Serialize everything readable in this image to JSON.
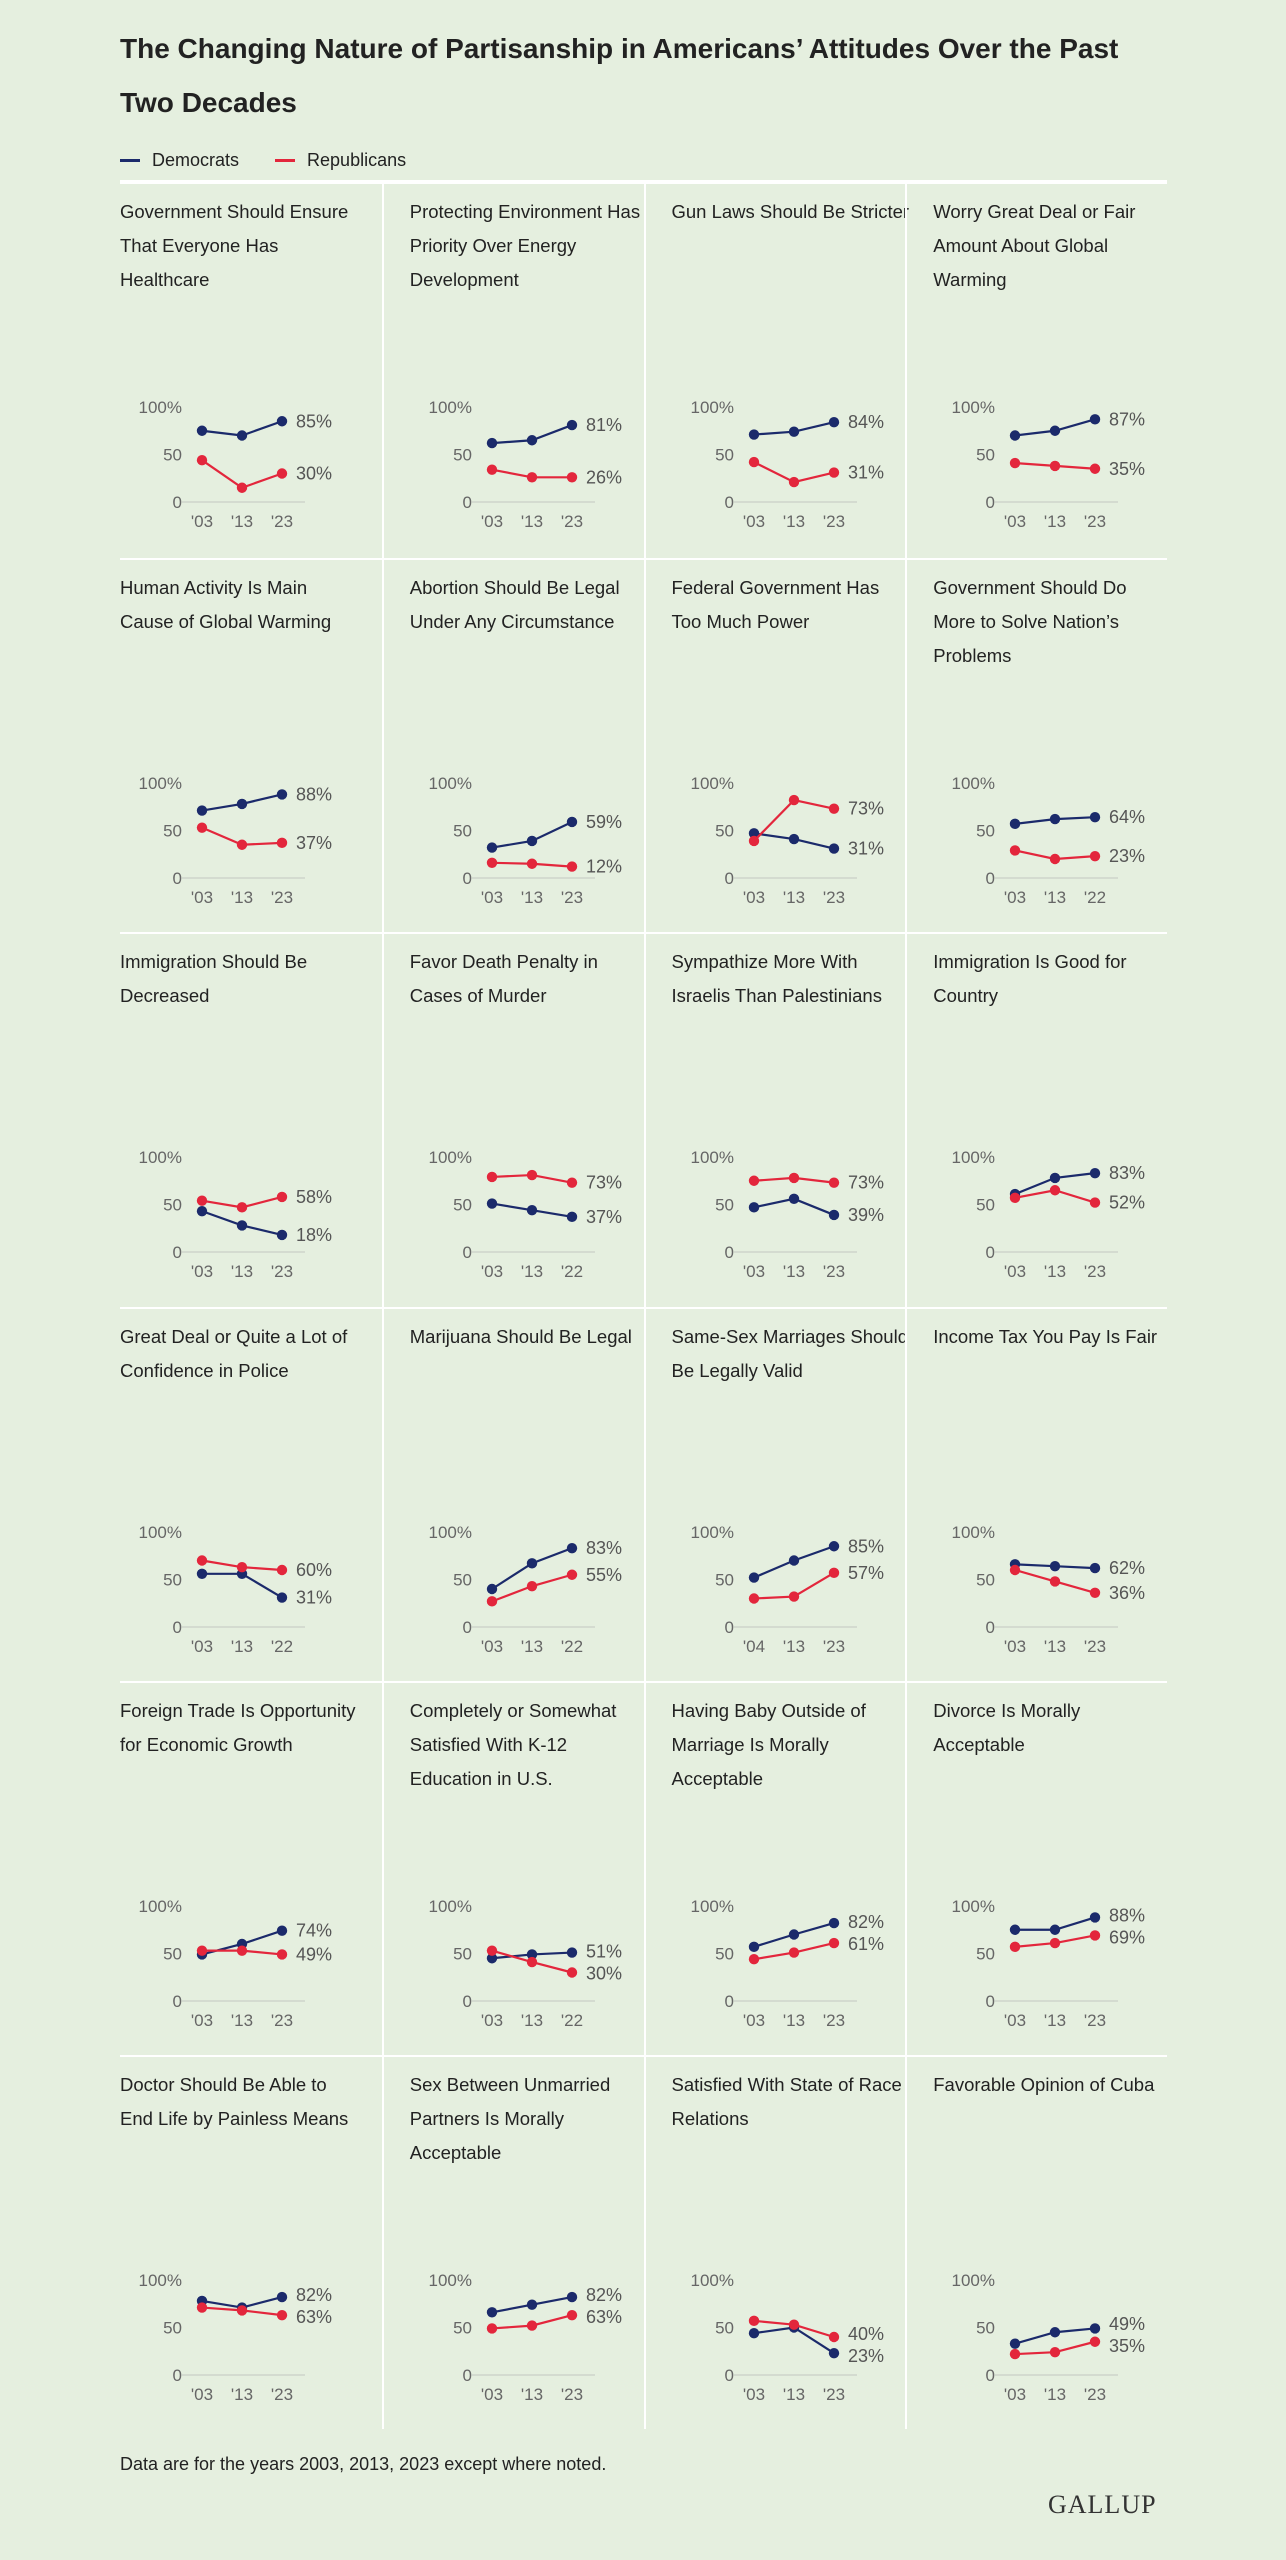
{
  "title": "The Changing Nature of Partisanship in Americans’ Attitudes Over the Past Two Decades",
  "legend": [
    {
      "name": "Democrats",
      "color": "#1b2a6b"
    },
    {
      "name": "Republicans",
      "color": "#e3263c"
    }
  ],
  "colors": {
    "democrats": "#1b2a6b",
    "republicans": "#e3263c",
    "background": "#e5efdf"
  },
  "y_ticks": [
    "100%",
    "50",
    "0"
  ],
  "footnote": "Data are for the years 2003, 2013, 2023 except where noted.",
  "brand": "GALLUP",
  "chart_data": [
    {
      "type": "line",
      "title": "Government  Should Ensure That Everyone Has Healthcare",
      "x": [
        "'03",
        "'13",
        "'23"
      ],
      "ylim": [
        0,
        100
      ],
      "series": [
        {
          "name": "Democrats",
          "values": [
            75,
            70,
            85
          ],
          "label": "85%"
        },
        {
          "name": "Republicans",
          "values": [
            44,
            15,
            30
          ],
          "label": "30%"
        }
      ]
    },
    {
      "type": "line",
      "title": "Protecting Environment Has Priority Over Energy Development",
      "x": [
        "'03",
        "'13",
        "'23"
      ],
      "ylim": [
        0,
        100
      ],
      "series": [
        {
          "name": "Democrats",
          "values": [
            62,
            65,
            81
          ],
          "label": "81%"
        },
        {
          "name": "Republicans",
          "values": [
            34,
            26,
            26
          ],
          "label": "26%"
        }
      ]
    },
    {
      "type": "line",
      "title": "Gun Laws Should Be Stricter",
      "x": [
        "'03",
        "'13",
        "'23"
      ],
      "ylim": [
        0,
        100
      ],
      "series": [
        {
          "name": "Democrats",
          "values": [
            71,
            74,
            84
          ],
          "label": "84%"
        },
        {
          "name": "Republicans",
          "values": [
            42,
            21,
            31
          ],
          "label": "31%"
        }
      ]
    },
    {
      "type": "line",
      "title": "Worry Great Deal or Fair Amount About Global Warming",
      "x": [
        "'03",
        "'13",
        "'23"
      ],
      "ylim": [
        0,
        100
      ],
      "series": [
        {
          "name": "Democrats",
          "values": [
            70,
            75,
            87
          ],
          "label": "87%"
        },
        {
          "name": "Republicans",
          "values": [
            41,
            38,
            35
          ],
          "label": "35%"
        }
      ]
    },
    {
      "type": "line",
      "title": "Human Activity Is Main Cause of Global Warming",
      "x": [
        "'03",
        "'13",
        "'23"
      ],
      "ylim": [
        0,
        100
      ],
      "series": [
        {
          "name": "Democrats",
          "values": [
            71,
            78,
            88
          ],
          "label": "88%"
        },
        {
          "name": "Republicans",
          "values": [
            53,
            35,
            37
          ],
          "label": "37%"
        }
      ]
    },
    {
      "type": "line",
      "title": "Abortion Should Be Legal Under Any Circumstance",
      "x": [
        "'03",
        "'13",
        "'23"
      ],
      "ylim": [
        0,
        100
      ],
      "series": [
        {
          "name": "Democrats",
          "values": [
            32,
            39,
            59
          ],
          "label": "59%"
        },
        {
          "name": "Republicans",
          "values": [
            16,
            15,
            12
          ],
          "label": "12%"
        }
      ]
    },
    {
      "type": "line",
      "title": "Federal Government Has Too Much Power",
      "x": [
        "'03",
        "'13",
        "'23"
      ],
      "ylim": [
        0,
        100
      ],
      "series": [
        {
          "name": "Democrats",
          "values": [
            47,
            41,
            31
          ],
          "label": "31%"
        },
        {
          "name": "Republicans",
          "values": [
            39,
            82,
            73
          ],
          "label": "73%"
        }
      ]
    },
    {
      "type": "line",
      "title": "Government Should Do More to Solve Nation’s Problems",
      "x": [
        "'03",
        "'13",
        "'22"
      ],
      "ylim": [
        0,
        100
      ],
      "series": [
        {
          "name": "Democrats",
          "values": [
            57,
            62,
            64
          ],
          "label": "64%"
        },
        {
          "name": "Republicans",
          "values": [
            29,
            20,
            23
          ],
          "label": "23%"
        }
      ]
    },
    {
      "type": "line",
      "title": "Immigration Should Be Decreased",
      "x": [
        "'03",
        "'13",
        "'23"
      ],
      "ylim": [
        0,
        100
      ],
      "series": [
        {
          "name": "Democrats",
          "values": [
            43,
            28,
            18
          ],
          "label": "18%"
        },
        {
          "name": "Republicans",
          "values": [
            54,
            47,
            58
          ],
          "label": "58%"
        }
      ]
    },
    {
      "type": "line",
      "title": "Favor Death Penalty in Cases of Murder",
      "x": [
        "'03",
        "'13",
        "'22"
      ],
      "ylim": [
        0,
        100
      ],
      "series": [
        {
          "name": "Democrats",
          "values": [
            51,
            44,
            37
          ],
          "label": "37%"
        },
        {
          "name": "Republicans",
          "values": [
            79,
            81,
            73
          ],
          "label": "73%"
        }
      ]
    },
    {
      "type": "line",
      "title": "Sympathize More With Israelis Than Palestinians",
      "x": [
        "'03",
        "'13",
        "'23"
      ],
      "ylim": [
        0,
        100
      ],
      "series": [
        {
          "name": "Democrats",
          "values": [
            47,
            56,
            39
          ],
          "label": "39%"
        },
        {
          "name": "Republicans",
          "values": [
            75,
            78,
            73
          ],
          "label": "73%"
        }
      ]
    },
    {
      "type": "line",
      "title": "Immigration Is Good for Country",
      "x": [
        "'03",
        "'13",
        "'23"
      ],
      "ylim": [
        0,
        100
      ],
      "series": [
        {
          "name": "Democrats",
          "values": [
            61,
            78,
            83
          ],
          "label": "83%"
        },
        {
          "name": "Republicans",
          "values": [
            57,
            65,
            52
          ],
          "label": "52%"
        }
      ]
    },
    {
      "type": "line",
      "title": "Great Deal or Quite a Lot of Confidence in Police",
      "x": [
        "'03",
        "'13",
        "'22"
      ],
      "ylim": [
        0,
        100
      ],
      "series": [
        {
          "name": "Democrats",
          "values": [
            56,
            56,
            31
          ],
          "label": "31%"
        },
        {
          "name": "Republicans",
          "values": [
            70,
            63,
            60
          ],
          "label": "60%"
        }
      ]
    },
    {
      "type": "line",
      "title": "Marijuana Should Be Legal",
      "x": [
        "'03",
        "'13",
        "'22"
      ],
      "ylim": [
        0,
        100
      ],
      "series": [
        {
          "name": "Democrats",
          "values": [
            40,
            67,
            83
          ],
          "label": "83%"
        },
        {
          "name": "Republicans",
          "values": [
            27,
            43,
            55
          ],
          "label": "55%"
        }
      ]
    },
    {
      "type": "line",
      "title": "Same-Sex Marriages Should Be Legally Valid",
      "x": [
        "'04",
        "'13",
        "'23"
      ],
      "ylim": [
        0,
        100
      ],
      "series": [
        {
          "name": "Democrats",
          "values": [
            52,
            70,
            85
          ],
          "label": "85%"
        },
        {
          "name": "Republicans",
          "values": [
            30,
            32,
            57
          ],
          "label": "57%"
        }
      ]
    },
    {
      "type": "line",
      "title": "Income Tax You Pay Is Fair",
      "x": [
        "'03",
        "'13",
        "'23"
      ],
      "ylim": [
        0,
        100
      ],
      "series": [
        {
          "name": "Democrats",
          "values": [
            66,
            64,
            62
          ],
          "label": "62%"
        },
        {
          "name": "Republicans",
          "values": [
            60,
            48,
            36
          ],
          "label": "36%"
        }
      ]
    },
    {
      "type": "line",
      "title": "Foreign Trade Is Opportunity for Economic Growth",
      "x": [
        "'03",
        "'13",
        "'23"
      ],
      "ylim": [
        0,
        100
      ],
      "series": [
        {
          "name": "Democrats",
          "values": [
            49,
            60,
            74
          ],
          "label": "74%"
        },
        {
          "name": "Republicans",
          "values": [
            53,
            53,
            49
          ],
          "label": "49%"
        }
      ]
    },
    {
      "type": "line",
      "title": "Completely or Somewhat Satisfied With K-12 Education in U.S.",
      "x": [
        "'03",
        "'13",
        "'22"
      ],
      "ylim": [
        0,
        100
      ],
      "series": [
        {
          "name": "Democrats",
          "values": [
            45,
            49,
            51
          ],
          "label": "51%"
        },
        {
          "name": "Republicans",
          "values": [
            53,
            41,
            30
          ],
          "label": "30%"
        }
      ]
    },
    {
      "type": "line",
      "title": "Having Baby Outside of Marriage Is Morally Acceptable",
      "x": [
        "'03",
        "'13",
        "'23"
      ],
      "ylim": [
        0,
        100
      ],
      "series": [
        {
          "name": "Democrats",
          "values": [
            57,
            70,
            82
          ],
          "label": "82%"
        },
        {
          "name": "Republicans",
          "values": [
            44,
            51,
            61
          ],
          "label": "61%"
        }
      ]
    },
    {
      "type": "line",
      "title": "Divorce Is Morally Acceptable",
      "x": [
        "'03",
        "'13",
        "'23"
      ],
      "ylim": [
        0,
        100
      ],
      "series": [
        {
          "name": "Democrats",
          "values": [
            75,
            75,
            88
          ],
          "label": "88%"
        },
        {
          "name": "Republicans",
          "values": [
            57,
            61,
            69
          ],
          "label": "69%"
        }
      ]
    },
    {
      "type": "line",
      "title": "Doctor Should Be Able to End Life by Painless Means",
      "x": [
        "'03",
        "'13",
        "'23"
      ],
      "ylim": [
        0,
        100
      ],
      "series": [
        {
          "name": "Democrats",
          "values": [
            78,
            71,
            82
          ],
          "label": "82%"
        },
        {
          "name": "Republicans",
          "values": [
            71,
            68,
            63
          ],
          "label": "63%"
        }
      ]
    },
    {
      "type": "line",
      "title": "Sex Between Unmarried Partners Is Morally Acceptable",
      "x": [
        "'03",
        "'13",
        "'23"
      ],
      "ylim": [
        0,
        100
      ],
      "series": [
        {
          "name": "Democrats",
          "values": [
            66,
            74,
            82
          ],
          "label": "82%"
        },
        {
          "name": "Republicans",
          "values": [
            49,
            52,
            63
          ],
          "label": "63%"
        }
      ]
    },
    {
      "type": "line",
      "title": "Satisfied With State of Race Relations",
      "x": [
        "'03",
        "'13",
        "'23"
      ],
      "ylim": [
        0,
        100
      ],
      "series": [
        {
          "name": "Democrats",
          "values": [
            44,
            50,
            23
          ],
          "label": "23%"
        },
        {
          "name": "Republicans",
          "values": [
            57,
            53,
            40
          ],
          "label": "40%"
        }
      ]
    },
    {
      "type": "line",
      "title": "Favorable Opinion of Cuba",
      "x": [
        "'03",
        "'13",
        "'23"
      ],
      "ylim": [
        0,
        100
      ],
      "series": [
        {
          "name": "Democrats",
          "values": [
            33,
            45,
            49
          ],
          "label": "49%"
        },
        {
          "name": "Republicans",
          "values": [
            22,
            24,
            35
          ],
          "label": "35%"
        }
      ]
    }
  ]
}
